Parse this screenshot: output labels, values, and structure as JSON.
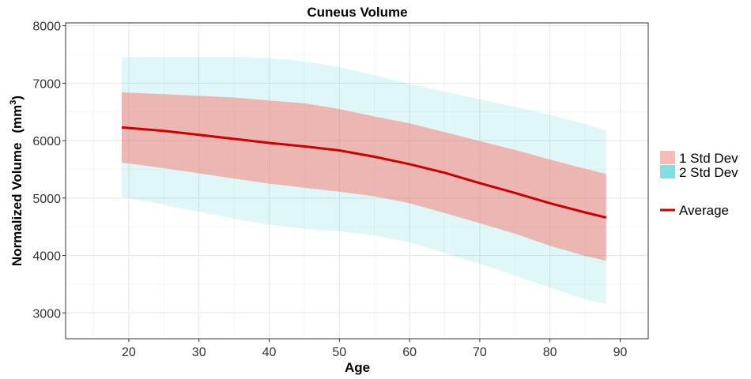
{
  "chart_data": {
    "type": "area",
    "title": "Cuneus Volume",
    "xlabel": "Age",
    "ylabel": "Normalized Volume",
    "ylabel_unit_base": "(mm",
    "ylabel_unit_exp": "3",
    "ylabel_unit_close": ")",
    "xlim": [
      11,
      94
    ],
    "ylim": [
      2550,
      8050
    ],
    "xticks": [
      20,
      30,
      40,
      50,
      60,
      70,
      80,
      90
    ],
    "yticks": [
      3000,
      4000,
      5000,
      6000,
      7000,
      8000
    ],
    "grid": true,
    "legend_position": "right",
    "colors": {
      "band_1sd": "#F8766D",
      "band_2sd": "#00BFC4",
      "average": "#CC0000"
    },
    "legend": {
      "band_1sd_label": "1 Std Dev",
      "band_2sd_label": "2 Std Dev",
      "average_label": "Average"
    },
    "x": [
      19,
      25,
      30,
      35,
      40,
      45,
      50,
      55,
      60,
      65,
      70,
      75,
      80,
      85,
      88
    ],
    "series": [
      {
        "name": "Average",
        "values": [
          6230,
          6170,
          6100,
          6030,
          5960,
          5900,
          5830,
          5720,
          5590,
          5440,
          5260,
          5090,
          4910,
          4750,
          4660
        ]
      },
      {
        "name": "1 Std Dev upper",
        "values": [
          6840,
          6810,
          6780,
          6750,
          6700,
          6650,
          6550,
          6420,
          6300,
          6150,
          5990,
          5840,
          5670,
          5510,
          5420
        ]
      },
      {
        "name": "1 Std Dev lower",
        "values": [
          5620,
          5520,
          5430,
          5340,
          5250,
          5180,
          5110,
          5030,
          4910,
          4740,
          4560,
          4380,
          4170,
          3990,
          3910
        ]
      },
      {
        "name": "2 Std Dev upper",
        "values": [
          7450,
          7460,
          7460,
          7460,
          7440,
          7380,
          7280,
          7140,
          6990,
          6850,
          6720,
          6590,
          6450,
          6290,
          6180
        ]
      },
      {
        "name": "2 Std Dev lower",
        "values": [
          5020,
          4880,
          4760,
          4640,
          4540,
          4460,
          4420,
          4350,
          4230,
          4040,
          3860,
          3650,
          3440,
          3240,
          3150
        ]
      }
    ]
  }
}
